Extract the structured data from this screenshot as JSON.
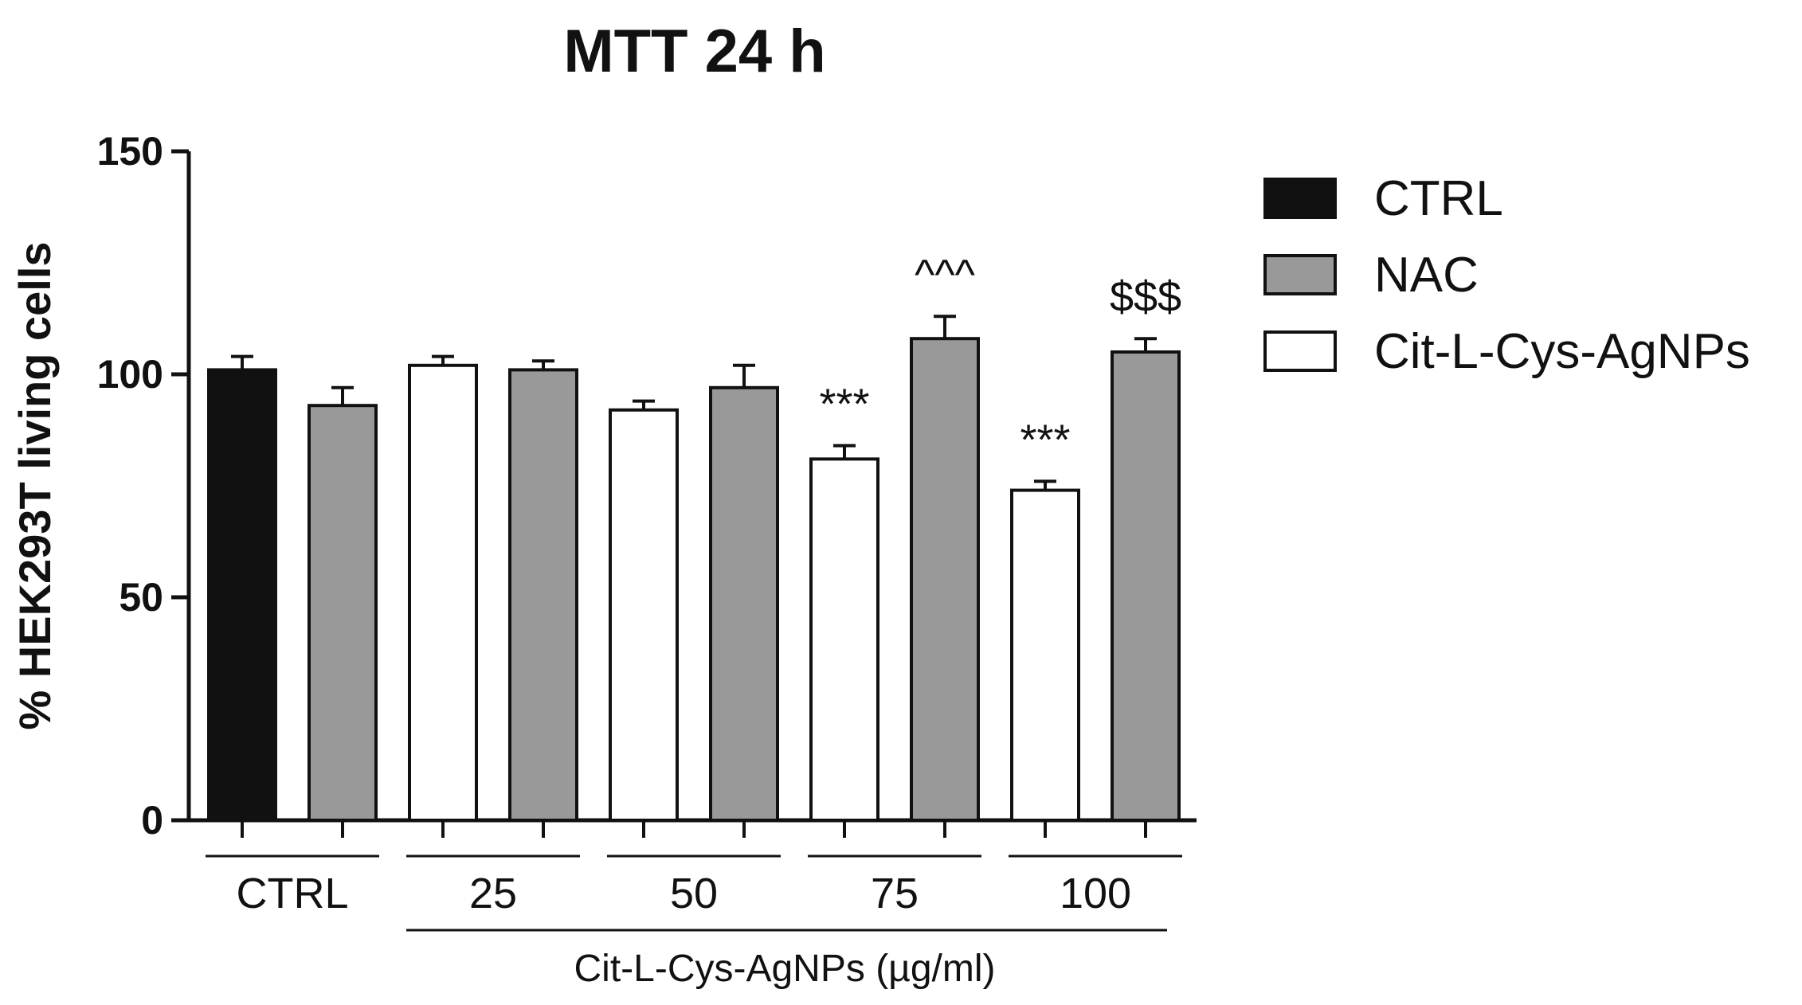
{
  "chart_data": {
    "type": "bar",
    "title": "MTT 24 h",
    "ylabel": "% HEK293T living cells",
    "xlabel": "Cit-L-Cys-AgNPs (µg/ml)",
    "ylim": [
      0,
      150
    ],
    "yticks": [
      0,
      50,
      100,
      150
    ],
    "grid": false,
    "legend_position": "right",
    "legend": [
      {
        "name": "CTRL",
        "color": "#111111"
      },
      {
        "name": "NAC",
        "color": "#999999"
      },
      {
        "name": "Cit-L-Cys-AgNPs",
        "color": "#ffffff"
      }
    ],
    "groups": [
      {
        "label": "CTRL",
        "bars": [
          {
            "series": "CTRL",
            "value": 101,
            "error": 3,
            "annotation": ""
          },
          {
            "series": "NAC",
            "value": 93,
            "error": 4,
            "annotation": ""
          }
        ]
      },
      {
        "label": "25",
        "bars": [
          {
            "series": "Cit-L-Cys-AgNPs",
            "value": 102,
            "error": 2,
            "annotation": ""
          },
          {
            "series": "NAC",
            "value": 101,
            "error": 2,
            "annotation": ""
          }
        ]
      },
      {
        "label": "50",
        "bars": [
          {
            "series": "Cit-L-Cys-AgNPs",
            "value": 92,
            "error": 2,
            "annotation": ""
          },
          {
            "series": "NAC",
            "value": 97,
            "error": 5,
            "annotation": ""
          }
        ]
      },
      {
        "label": "75",
        "bars": [
          {
            "series": "Cit-L-Cys-AgNPs",
            "value": 81,
            "error": 3,
            "annotation": "***"
          },
          {
            "series": "NAC",
            "value": 108,
            "error": 5,
            "annotation": "^^^"
          }
        ]
      },
      {
        "label": "100",
        "bars": [
          {
            "series": "Cit-L-Cys-AgNPs",
            "value": 74,
            "error": 2,
            "annotation": "***"
          },
          {
            "series": "NAC",
            "value": 105,
            "error": 3,
            "annotation": "$$$"
          }
        ]
      }
    ]
  }
}
